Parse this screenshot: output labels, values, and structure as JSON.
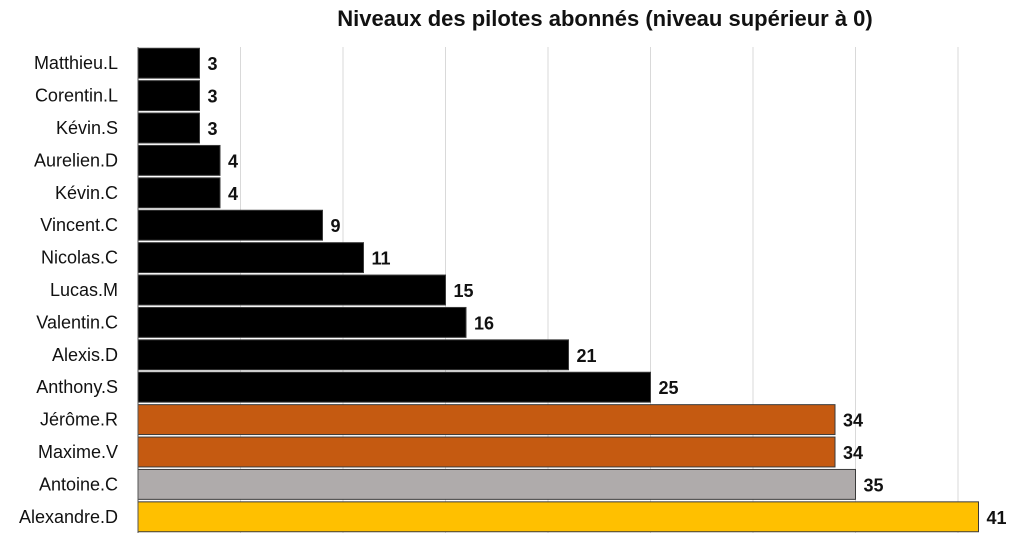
{
  "chart_data": {
    "type": "bar",
    "orientation": "horizontal",
    "title": "Niveaux des pilotes abonnés (niveau supérieur à 0)",
    "xlabel": "",
    "ylabel": "",
    "xlim": [
      0,
      42
    ],
    "grid": true,
    "legend": "none",
    "categories": [
      "Matthieu.L",
      "Corentin.L",
      "Kévin.S",
      "Aurelien.D",
      "Kévin.C",
      "Vincent.C",
      "Nicolas.C",
      "Lucas.M",
      "Valentin.C",
      "Alexis.D",
      "Anthony.S",
      "Jérôme.R",
      "Maxime.V",
      "Antoine.C",
      "Alexandre.D"
    ],
    "values": [
      3,
      3,
      3,
      4,
      4,
      9,
      11,
      15,
      16,
      21,
      25,
      34,
      34,
      35,
      41
    ],
    "bar_colors": [
      "#000000",
      "#000000",
      "#000000",
      "#000000",
      "#000000",
      "#000000",
      "#000000",
      "#000000",
      "#000000",
      "#000000",
      "#000000",
      "#c55a11",
      "#c55a11",
      "#afabab",
      "#ffc000"
    ]
  }
}
